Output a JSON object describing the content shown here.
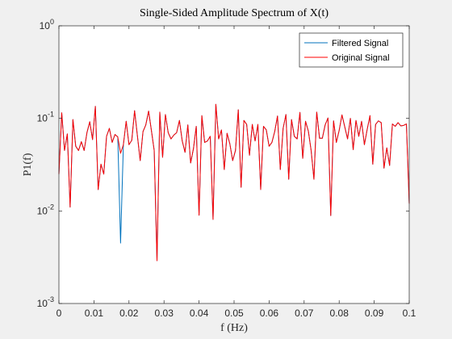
{
  "chart_data": {
    "type": "line",
    "title": "Single-Sided Amplitude Spectrum of X(t)",
    "xlabel": "f (Hz)",
    "ylabel": "P1(f)",
    "xlim": [
      0,
      0.1
    ],
    "ylim": [
      0.001,
      1
    ],
    "yscale": "log",
    "xticks": [
      0,
      0.01,
      0.02,
      0.03,
      0.04,
      0.05,
      0.06,
      0.07,
      0.08,
      0.09,
      0.1
    ],
    "xtick_labels": [
      "0",
      "0.01",
      "0.02",
      "0.03",
      "0.04",
      "0.05",
      "0.06",
      "0.07",
      "0.08",
      "0.09",
      "0.1"
    ],
    "yticks": [
      0.001,
      0.01,
      0.1,
      1
    ],
    "ytick_labels": [
      {
        "base": "10",
        "exp": "-3"
      },
      {
        "base": "10",
        "exp": "-2"
      },
      {
        "base": "10",
        "exp": "-1"
      },
      {
        "base": "10",
        "exp": "0"
      }
    ],
    "grid": false,
    "legend_position": "top-right",
    "x": [
      0.0,
      0.0008,
      0.0016,
      0.0024,
      0.0032,
      0.004,
      0.0048,
      0.0056,
      0.0064,
      0.0072,
      0.008,
      0.0088,
      0.0096,
      0.0104,
      0.0112,
      0.012,
      0.0128,
      0.0136,
      0.0144,
      0.0152,
      0.016,
      0.0168,
      0.0176,
      0.0184,
      0.0192,
      0.02,
      0.0208,
      0.0216,
      0.0224,
      0.0232,
      0.024,
      0.0248,
      0.0256,
      0.0264,
      0.0272,
      0.028,
      0.0288,
      0.0296,
      0.0304,
      0.0312,
      0.032,
      0.0328,
      0.0336,
      0.0344,
      0.0352,
      0.036,
      0.0368,
      0.0376,
      0.0384,
      0.0392,
      0.04,
      0.0408,
      0.0416,
      0.0424,
      0.0432,
      0.044,
      0.0448,
      0.0456,
      0.0464,
      0.0472,
      0.048,
      0.0488,
      0.0496,
      0.0504,
      0.0512,
      0.052,
      0.0528,
      0.0536,
      0.0544,
      0.0552,
      0.056,
      0.0568,
      0.0576,
      0.0584,
      0.0592,
      0.06,
      0.0608,
      0.0616,
      0.0624,
      0.0632,
      0.064,
      0.0648,
      0.0656,
      0.0664,
      0.0672,
      0.068,
      0.0688,
      0.0696,
      0.0704,
      0.0712,
      0.072,
      0.0728,
      0.0736,
      0.0744,
      0.0752,
      0.076,
      0.0768,
      0.0776,
      0.0784,
      0.0792,
      0.08,
      0.0808,
      0.0816,
      0.0824,
      0.0832,
      0.084,
      0.0848,
      0.0856,
      0.0864,
      0.0872,
      0.088,
      0.0888,
      0.0896,
      0.0904,
      0.0912,
      0.092,
      0.0928,
      0.0936,
      0.0944,
      0.0952,
      0.096,
      0.0968,
      0.0976,
      0.0984,
      0.0992,
      0.1
    ],
    "series": [
      {
        "name": "Filtered Signal",
        "color": "#0072bd",
        "values": [
          0.025,
          0.115,
          0.045,
          0.068,
          0.011,
          0.097,
          0.05,
          0.045,
          0.056,
          0.045,
          0.07,
          0.092,
          0.059,
          0.135,
          0.017,
          0.032,
          0.025,
          0.064,
          0.078,
          0.055,
          0.067,
          0.063,
          0.0045,
          0.052,
          0.093,
          0.052,
          0.058,
          0.121,
          0.065,
          0.035,
          0.072,
          0.085,
          0.12,
          0.074,
          0.045,
          0.0029,
          0.117,
          0.038,
          0.11,
          0.07,
          0.06,
          0.066,
          0.07,
          0.095,
          0.057,
          0.043,
          0.085,
          0.033,
          0.047,
          0.082,
          0.009,
          0.107,
          0.055,
          0.057,
          0.064,
          0.0081,
          0.142,
          0.06,
          0.075,
          0.028,
          0.069,
          0.053,
          0.035,
          0.045,
          0.124,
          0.018,
          0.095,
          0.086,
          0.04,
          0.086,
          0.057,
          0.086,
          0.017,
          0.082,
          0.075,
          0.05,
          0.055,
          0.072,
          0.106,
          0.028,
          0.078,
          0.11,
          0.022,
          0.097,
          0.064,
          0.06,
          0.116,
          0.037,
          0.093,
          0.073,
          0.045,
          0.022,
          0.117,
          0.061,
          0.061,
          0.085,
          0.101,
          0.0089,
          0.094,
          0.055,
          0.074,
          0.109,
          0.081,
          0.06,
          0.1,
          0.046,
          0.095,
          0.064,
          0.093,
          0.052,
          0.076,
          0.107,
          0.032,
          0.086,
          0.094,
          0.09,
          0.029,
          0.048,
          0.031,
          0.087,
          0.082,
          0.09,
          0.083,
          0.084,
          0.087,
          0.012
        ]
      },
      {
        "name": "Original Signal",
        "color": "#ff0000",
        "values": [
          0.025,
          0.115,
          0.045,
          0.068,
          0.011,
          0.097,
          0.05,
          0.045,
          0.056,
          0.045,
          0.07,
          0.092,
          0.059,
          0.135,
          0.017,
          0.032,
          0.025,
          0.064,
          0.078,
          0.055,
          0.067,
          0.063,
          0.042,
          0.052,
          0.093,
          0.052,
          0.058,
          0.121,
          0.065,
          0.035,
          0.072,
          0.085,
          0.12,
          0.074,
          0.045,
          0.0029,
          0.117,
          0.038,
          0.11,
          0.07,
          0.06,
          0.066,
          0.07,
          0.095,
          0.057,
          0.043,
          0.085,
          0.033,
          0.047,
          0.082,
          0.009,
          0.107,
          0.055,
          0.057,
          0.064,
          0.0081,
          0.142,
          0.06,
          0.075,
          0.028,
          0.069,
          0.053,
          0.035,
          0.045,
          0.124,
          0.018,
          0.095,
          0.086,
          0.04,
          0.086,
          0.057,
          0.086,
          0.017,
          0.082,
          0.075,
          0.05,
          0.055,
          0.072,
          0.106,
          0.028,
          0.078,
          0.11,
          0.022,
          0.097,
          0.064,
          0.06,
          0.116,
          0.037,
          0.093,
          0.073,
          0.045,
          0.022,
          0.117,
          0.061,
          0.061,
          0.085,
          0.101,
          0.0089,
          0.094,
          0.055,
          0.074,
          0.109,
          0.081,
          0.06,
          0.1,
          0.046,
          0.095,
          0.064,
          0.093,
          0.052,
          0.076,
          0.107,
          0.032,
          0.086,
          0.094,
          0.09,
          0.029,
          0.048,
          0.031,
          0.087,
          0.082,
          0.09,
          0.083,
          0.084,
          0.087,
          0.012
        ]
      }
    ]
  }
}
